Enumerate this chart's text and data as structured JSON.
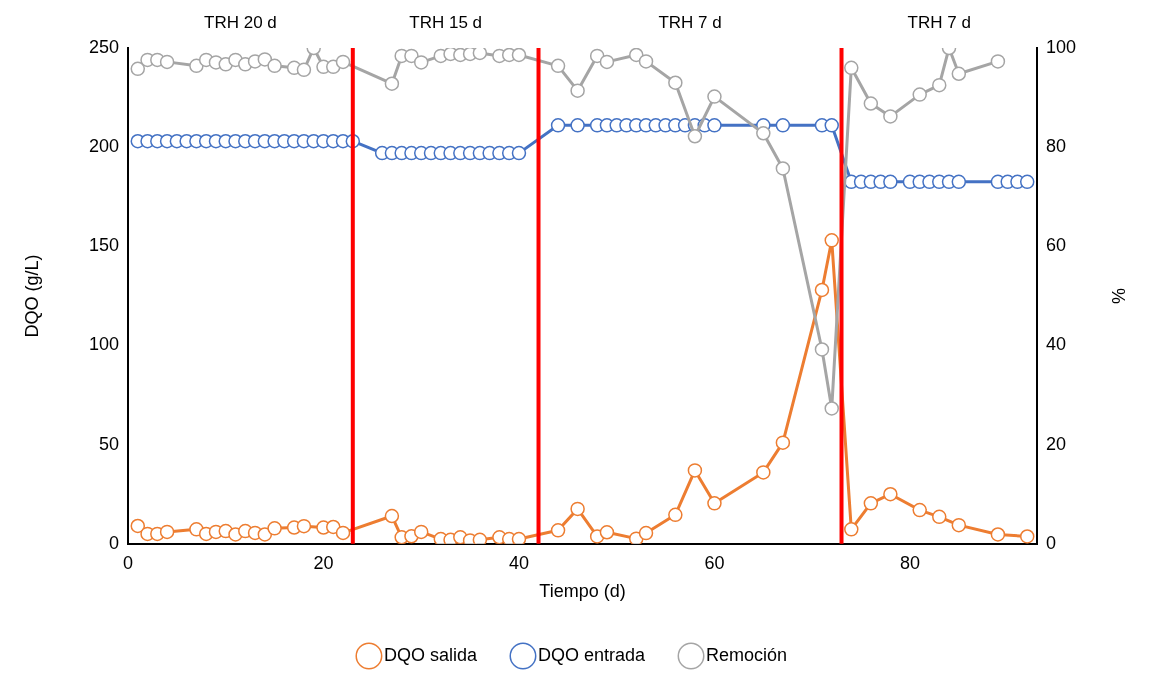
{
  "chart_data": {
    "type": "line",
    "xlabel": "Tiempo (d)",
    "ylabel": "DQO (g/L)",
    "y2label": "%",
    "xlim": [
      0,
      93
    ],
    "xticks": [
      0,
      20,
      40,
      60,
      80
    ],
    "ylim": [
      0,
      250
    ],
    "yticks": [
      0,
      50,
      100,
      150,
      200,
      250
    ],
    "y2lim": [
      0,
      100
    ],
    "y2ticks": [
      0,
      20,
      40,
      60,
      80,
      100
    ],
    "grid": false,
    "legend": "bottom",
    "marker": "circle",
    "line_style": "solid",
    "series": [
      {
        "name": "DQO salida",
        "color": "#ed7d31",
        "x": [
          1,
          2,
          3,
          4,
          7,
          8,
          9,
          10,
          11,
          12,
          13,
          14,
          15,
          17,
          18,
          20,
          21,
          22,
          27,
          28,
          29,
          30,
          32,
          33,
          34,
          35,
          36,
          38,
          39,
          40,
          44,
          46,
          48,
          49,
          52,
          53,
          56,
          58,
          60,
          65,
          67,
          71,
          72,
          74,
          76,
          78,
          81,
          83,
          85,
          89,
          92
        ],
        "values": [
          9,
          5,
          5,
          6,
          7.3,
          5,
          6,
          6.4,
          4.7,
          6.4,
          5.5,
          4.7,
          7.8,
          8.2,
          8.9,
          8.2,
          8.5,
          5.5,
          14,
          3.3,
          3.8,
          6,
          2.4,
          2,
          3.3,
          1.7,
          2,
          3.3,
          2.4,
          2.4,
          6.8,
          17.6,
          3.7,
          5.8,
          2.6,
          5.4,
          14.6,
          37,
          20.4,
          36,
          51,
          128,
          153,
          7.3,
          20.4,
          25,
          17,
          13.6,
          9.4,
          4.7,
          3.7
        ]
      },
      {
        "name": "DQO entrada",
        "color": "#4472c4",
        "x": [
          1,
          2,
          3,
          4,
          5,
          6,
          7,
          8,
          9,
          10,
          11,
          12,
          13,
          14,
          15,
          16,
          17,
          18,
          19,
          20,
          21,
          22,
          23,
          26,
          27,
          28,
          29,
          30,
          31,
          32,
          33,
          34,
          35,
          36,
          37,
          38,
          39,
          40,
          44,
          46,
          48,
          49,
          50,
          51,
          52,
          53,
          54,
          55,
          56,
          57,
          58,
          59,
          60,
          65,
          67,
          71,
          72,
          74,
          75,
          76,
          77,
          78,
          80,
          81,
          82,
          83,
          84,
          85,
          89,
          90,
          91,
          92
        ],
        "values": [
          203,
          203,
          203,
          203,
          203,
          203,
          203,
          203,
          203,
          203,
          203,
          203,
          203,
          203,
          203,
          203,
          203,
          203,
          203,
          203,
          203,
          203,
          203,
          197,
          197,
          197,
          197,
          197,
          197,
          197,
          197,
          197,
          197,
          197,
          197,
          197,
          197,
          197,
          211,
          211,
          211,
          211,
          211,
          211,
          211,
          211,
          211,
          211,
          211,
          211,
          211,
          211,
          211,
          211,
          211,
          211,
          211,
          182.5,
          182.5,
          182.5,
          182.5,
          182.5,
          182.5,
          182.5,
          182.5,
          182.5,
          182.5,
          182.5,
          182.5,
          182.5,
          182.5,
          182.5
        ]
      },
      {
        "name": "Remoción",
        "color": "#a5a5a5",
        "axis": "y2",
        "x": [
          1,
          2,
          3,
          4,
          7,
          8,
          9,
          10,
          11,
          12,
          13,
          14,
          15,
          17,
          18,
          19,
          20,
          21,
          22,
          27,
          28,
          29,
          30,
          32,
          33,
          34,
          35,
          36,
          38,
          39,
          40,
          44,
          46,
          48,
          49,
          52,
          53,
          56,
          58,
          60,
          65,
          67,
          71,
          72,
          74,
          76,
          78,
          81,
          83,
          84,
          85,
          89
        ],
        "values": [
          95.8,
          97.6,
          97.6,
          97.2,
          96.4,
          97.6,
          97.1,
          96.7,
          97.6,
          96.7,
          97.3,
          97.7,
          96.4,
          96,
          95.6,
          100,
          96.2,
          96.2,
          97.2,
          92.8,
          98.4,
          98.4,
          97.1,
          98.4,
          98.8,
          98.6,
          98.8,
          99,
          98.4,
          98.6,
          98.6,
          96.4,
          91.4,
          98.4,
          97.2,
          98.6,
          97.3,
          93,
          82.2,
          90.2,
          82.8,
          75.7,
          39.2,
          27.3,
          96,
          88.8,
          86.2,
          90.6,
          92.5,
          100,
          94.8,
          97.3
        ]
      }
    ],
    "ref_lines": [
      {
        "axis": "x",
        "value": 23,
        "color": "#ff0000"
      },
      {
        "axis": "x",
        "value": 42,
        "color": "#ff0000"
      },
      {
        "axis": "x",
        "value": 73,
        "color": "#ff0000"
      }
    ],
    "annotations": [
      "TRH 20 d",
      "TRH 15 d",
      "TRH 7 d",
      "TRH 7 d"
    ]
  }
}
